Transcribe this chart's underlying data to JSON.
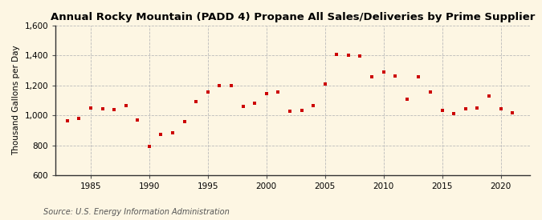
{
  "title": "Annual Rocky Mountain (PADD 4) Propane All Sales/Deliveries by Prime Supplier",
  "ylabel": "Thousand Gallons per Day",
  "source": "Source: U.S. Energy Information Administration",
  "background_color": "#fdf6e3",
  "dot_color": "#cc0000",
  "years": [
    1983,
    1984,
    1985,
    1986,
    1987,
    1988,
    1989,
    1990,
    1991,
    1992,
    1993,
    1994,
    1995,
    1996,
    1997,
    1998,
    1999,
    2000,
    2001,
    2002,
    2003,
    2004,
    2005,
    2006,
    2007,
    2008,
    2009,
    2010,
    2011,
    2012,
    2013,
    2014,
    2015,
    2016,
    2017,
    2018,
    2019,
    2020,
    2021
  ],
  "values": [
    962,
    980,
    1050,
    1045,
    1040,
    1065,
    970,
    795,
    875,
    885,
    960,
    1090,
    1155,
    1200,
    1200,
    1060,
    1080,
    1145,
    1155,
    1025,
    1035,
    1065,
    1210,
    1405,
    1400,
    1395,
    1260,
    1290,
    1265,
    1110,
    1255,
    1155,
    1035,
    1010,
    1045,
    1050,
    1130,
    1045,
    1015
  ],
  "ylim": [
    600,
    1600
  ],
  "yticks": [
    600,
    800,
    1000,
    1200,
    1400,
    1600
  ],
  "xticks": [
    1985,
    1990,
    1995,
    2000,
    2005,
    2010,
    2015,
    2020
  ],
  "xlim": [
    1982,
    2022.5
  ],
  "title_fontsize": 9.5,
  "label_fontsize": 7.5,
  "source_fontsize": 7.0
}
